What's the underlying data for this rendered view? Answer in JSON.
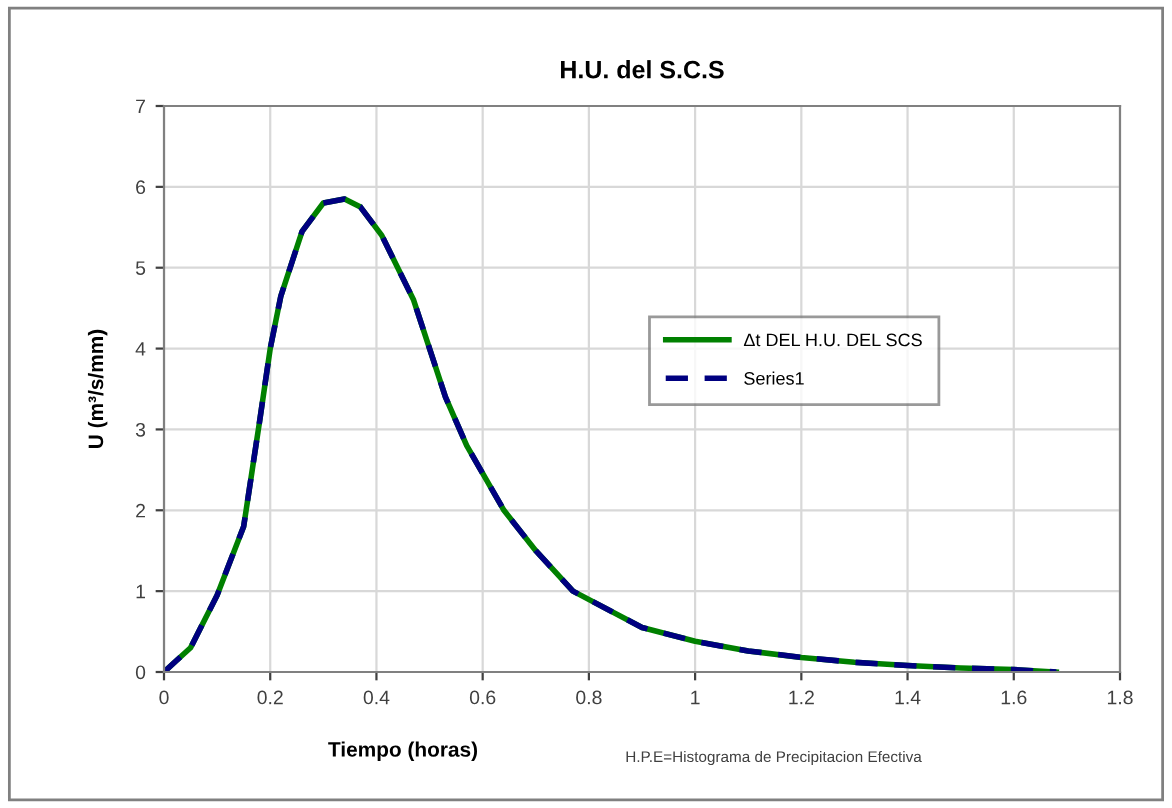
{
  "chart_data": {
    "type": "line",
    "title": "H.U. del S.C.S",
    "xlabel": "Tiempo (horas)",
    "ylabel": "U (m³/s/mm)",
    "x": [
      0,
      0.02,
      0.05,
      0.1,
      0.15,
      0.18,
      0.2,
      0.22,
      0.26,
      0.3,
      0.34,
      0.37,
      0.41,
      0.47,
      0.5,
      0.53,
      0.57,
      0.64,
      0.7,
      0.77,
      0.9,
      1.0,
      1.1,
      1.2,
      1.3,
      1.4,
      1.5,
      1.6,
      1.68
    ],
    "series": [
      {
        "name": "Δt DEL H.U. DEL SCS",
        "color": "#008000",
        "line_style": "solid",
        "values": [
          0,
          0.12,
          0.3,
          0.95,
          1.8,
          3.1,
          4.0,
          4.65,
          5.45,
          5.8,
          5.85,
          5.75,
          5.4,
          4.6,
          4.0,
          3.4,
          2.8,
          2.0,
          1.5,
          1.0,
          0.55,
          0.38,
          0.26,
          0.18,
          0.12,
          0.08,
          0.05,
          0.03,
          0
        ]
      },
      {
        "name": "Series1",
        "color": "#000080",
        "line_style": "dashed",
        "values": [
          0,
          0.12,
          0.3,
          0.95,
          1.8,
          3.1,
          4.0,
          4.65,
          5.45,
          5.8,
          5.85,
          5.75,
          5.4,
          4.6,
          4.0,
          3.4,
          2.8,
          2.0,
          1.5,
          1.0,
          0.55,
          0.38,
          0.26,
          0.18,
          0.12,
          0.08,
          0.05,
          0.03,
          0
        ]
      }
    ],
    "xlim": [
      0,
      1.8
    ],
    "xticks": [
      0,
      0.2,
      0.4,
      0.6,
      0.8,
      1,
      1.2,
      1.4,
      1.6,
      1.8
    ],
    "ylim": [
      0,
      7
    ],
    "yticks": [
      0,
      1,
      2,
      3,
      4,
      5,
      6,
      7
    ],
    "grid": true,
    "legend": "right",
    "marker": "none",
    "annotations": [
      "H.P.E=Histograma de Precipitacion Efectiva"
    ]
  }
}
